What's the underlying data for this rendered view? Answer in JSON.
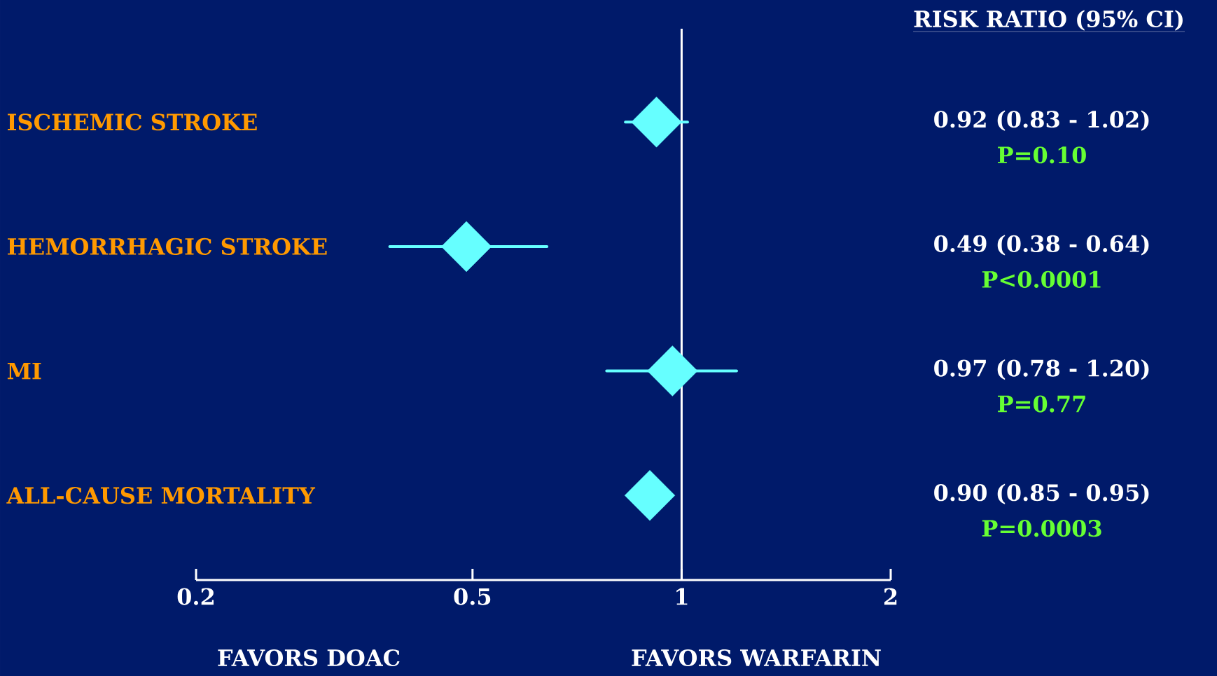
{
  "chart_data": {
    "type": "scatter",
    "title": "RISK RATIO (95% CI)",
    "orientation": "horizontal",
    "categories": [
      "ISCHEMIC STROKE",
      "HEMORRHAGIC STROKE",
      "MI",
      "ALL-CAUSE MORTALITY"
    ],
    "values": [
      0.92,
      0.49,
      0.97,
      0.9
    ],
    "errors": [
      [
        0.83,
        1.02
      ],
      [
        0.38,
        0.64
      ],
      [
        0.78,
        1.2
      ],
      null
    ],
    "value_labels": [
      "0.92 (0.83 - 1.02)",
      "0.49 (0.38 - 0.64)",
      "0.97 (0.78 - 1.20)",
      "0.90 (0.85 - 0.95)"
    ],
    "annotations": [
      "P=0.10",
      "P<0.0001",
      "P=0.77",
      "P=0.0003",
      "FAVORS DOAC",
      "FAVORS WARFARIN"
    ],
    "xlim": [
      0.2,
      2
    ],
    "xticks": [
      0.2,
      0.5,
      1,
      2
    ],
    "log": "x",
    "marker": "diamond",
    "color": "#66ffff",
    "ref_lines": [
      {
        "axis": "x",
        "value": 1,
        "color": "#ffffff"
      }
    ]
  }
}
